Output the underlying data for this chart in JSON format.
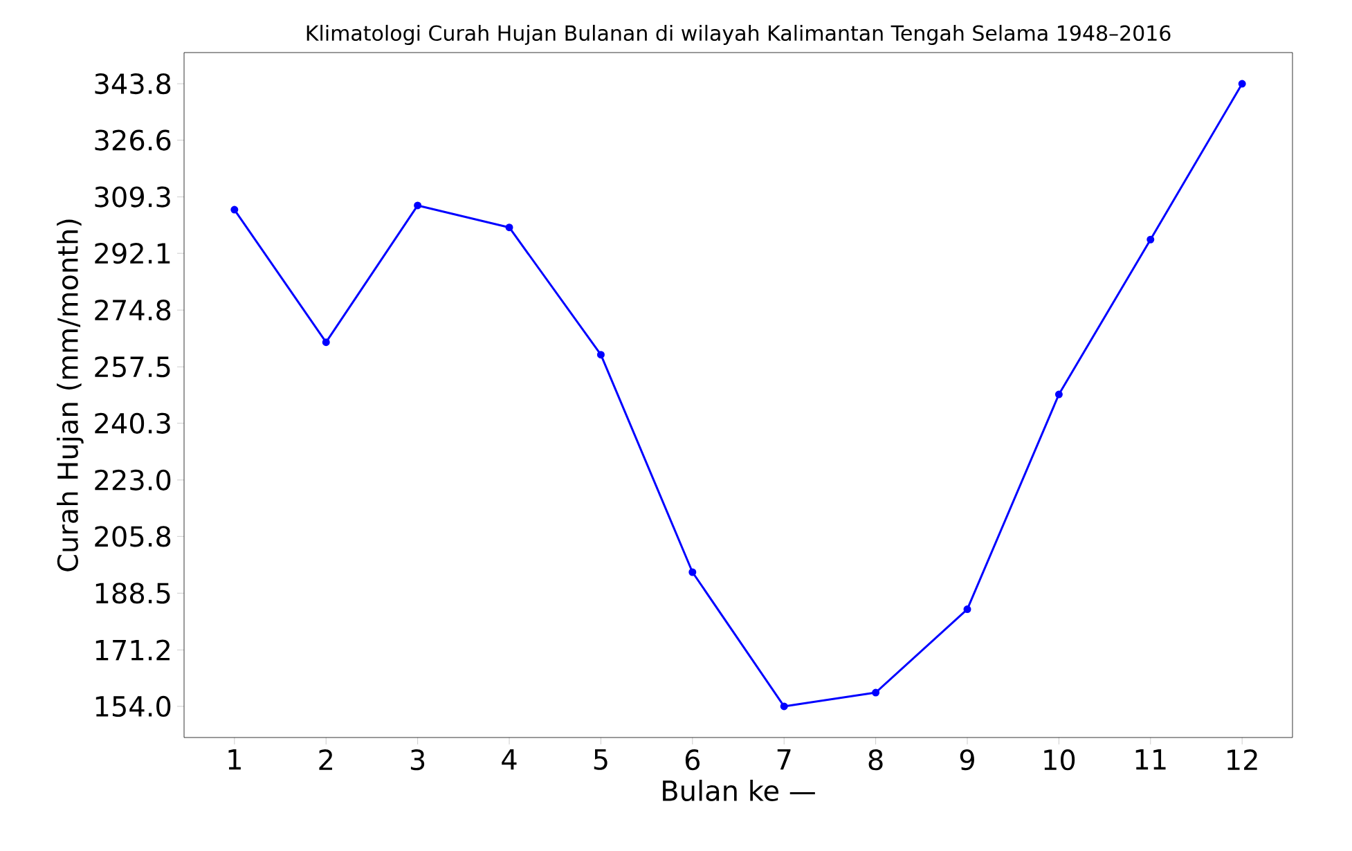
{
  "chart_data": {
    "type": "line",
    "title": "Klimatologi Curah Hujan Bulanan di wilayah Kalimantan Tengah Selama 1948–2016",
    "xlabel": "Bulan ke —",
    "ylabel": "Curah Hujan (mm/month)",
    "x": [
      1,
      2,
      3,
      4,
      5,
      6,
      7,
      8,
      9,
      10,
      11,
      12
    ],
    "series": [
      {
        "color": "#0000ff",
        "values": [
          305.4,
          265.0,
          306.7,
          300.0,
          261.2,
          194.9,
          154.0,
          158.2,
          183.6,
          249.1,
          296.3,
          343.8
        ]
      }
    ],
    "xlim": [
      0.45,
      12.55
    ],
    "ylim": [
      144.5,
      353.3
    ],
    "xticks": [
      1,
      2,
      3,
      4,
      5,
      6,
      7,
      8,
      9,
      10,
      11,
      12
    ],
    "yticks": [
      {
        "value": 154.0,
        "label": "154.0"
      },
      {
        "value": 171.2,
        "label": "171.2"
      },
      {
        "value": 188.5,
        "label": "188.5"
      },
      {
        "value": 205.8,
        "label": "205.8"
      },
      {
        "value": 223.0,
        "label": "223.0"
      },
      {
        "value": 240.3,
        "label": "240.3"
      },
      {
        "value": 257.5,
        "label": "257.5"
      },
      {
        "value": 274.8,
        "label": "274.8"
      },
      {
        "value": 292.1,
        "label": "292.1"
      },
      {
        "value": 309.3,
        "label": "309.3"
      },
      {
        "value": 326.6,
        "label": "326.6"
      },
      {
        "value": 343.8,
        "label": "343.8"
      }
    ],
    "grid": false,
    "marker": "circle",
    "line_style": "solid"
  }
}
